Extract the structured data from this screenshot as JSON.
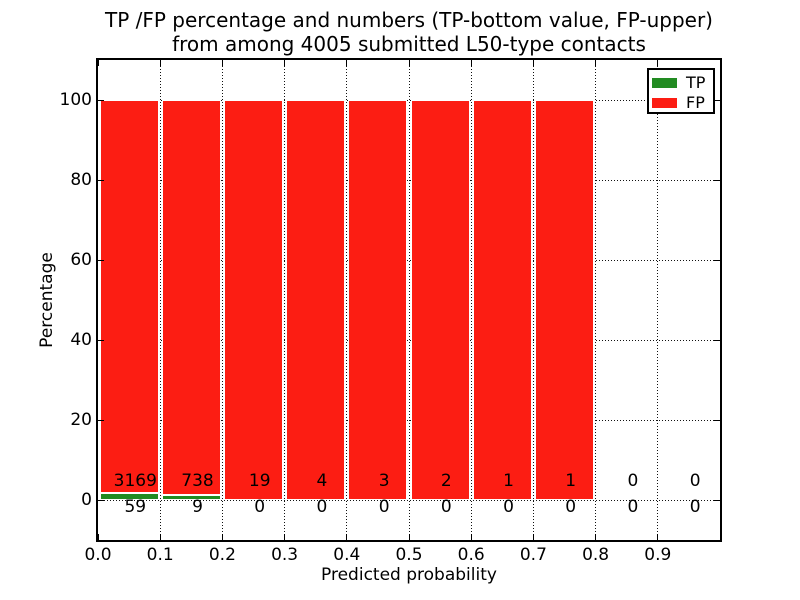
{
  "figure": {
    "title_line1": "TP /FP percentage and numbers (TP-bottom value, FP-upper)",
    "title_line2": "from among 4005 submitted L50-type contacts",
    "xlabel": "Predicted probability",
    "ylabel": "Percentage"
  },
  "legend": {
    "items": [
      {
        "label": "TP",
        "color": "#228b22"
      },
      {
        "label": "FP",
        "color": "#fc1d13"
      }
    ]
  },
  "chart_data": {
    "type": "bar",
    "stacked": true,
    "percent_stacked": true,
    "title": "TP /FP percentage and numbers (TP-bottom value, FP-upper) from among 4005 submitted L50-type contacts",
    "xlabel": "Predicted probability",
    "ylabel": "Percentage",
    "xlim": [
      0.0,
      1.0
    ],
    "ylim": [
      -10,
      110
    ],
    "xticks": [
      0.0,
      0.1,
      0.2,
      0.3,
      0.4,
      0.5,
      0.6,
      0.7,
      0.8,
      0.9
    ],
    "xtick_labels": [
      "0.0",
      "0.1",
      "0.2",
      "0.3",
      "0.4",
      "0.5",
      "0.6",
      "0.7",
      "0.8",
      "0.9"
    ],
    "yticks": [
      0,
      20,
      40,
      60,
      80,
      100
    ],
    "ytick_labels": [
      "0",
      "20",
      "40",
      "60",
      "80",
      "100"
    ],
    "grid": "dotted",
    "legend_position": "upper-right",
    "series": [
      {
        "name": "TP",
        "color": "#228b22",
        "counts": [
          59,
          9,
          0,
          0,
          0,
          0,
          0,
          0,
          0,
          0
        ]
      },
      {
        "name": "FP",
        "color": "#fc1d13",
        "counts": [
          3169,
          738,
          19,
          4,
          3,
          2,
          1,
          1,
          0,
          0
        ]
      }
    ],
    "bins": [
      {
        "range": [
          0.0,
          0.1
        ],
        "tp": 59,
        "fp": 3169
      },
      {
        "range": [
          0.1,
          0.2
        ],
        "tp": 9,
        "fp": 738
      },
      {
        "range": [
          0.2,
          0.3
        ],
        "tp": 0,
        "fp": 19
      },
      {
        "range": [
          0.3,
          0.4
        ],
        "tp": 0,
        "fp": 4
      },
      {
        "range": [
          0.4,
          0.5
        ],
        "tp": 0,
        "fp": 3
      },
      {
        "range": [
          0.5,
          0.6
        ],
        "tp": 0,
        "fp": 2
      },
      {
        "range": [
          0.6,
          0.7
        ],
        "tp": 0,
        "fp": 1
      },
      {
        "range": [
          0.7,
          0.8
        ],
        "tp": 0,
        "fp": 1
      },
      {
        "range": [
          0.8,
          0.9
        ],
        "tp": 0,
        "fp": 0
      },
      {
        "range": [
          0.9,
          1.0
        ],
        "tp": 0,
        "fp": 0
      }
    ],
    "colors": {
      "tp": "#228b22",
      "fp": "#fc1d13",
      "bar_edge": "#ffffff",
      "grid": "#000000"
    }
  }
}
